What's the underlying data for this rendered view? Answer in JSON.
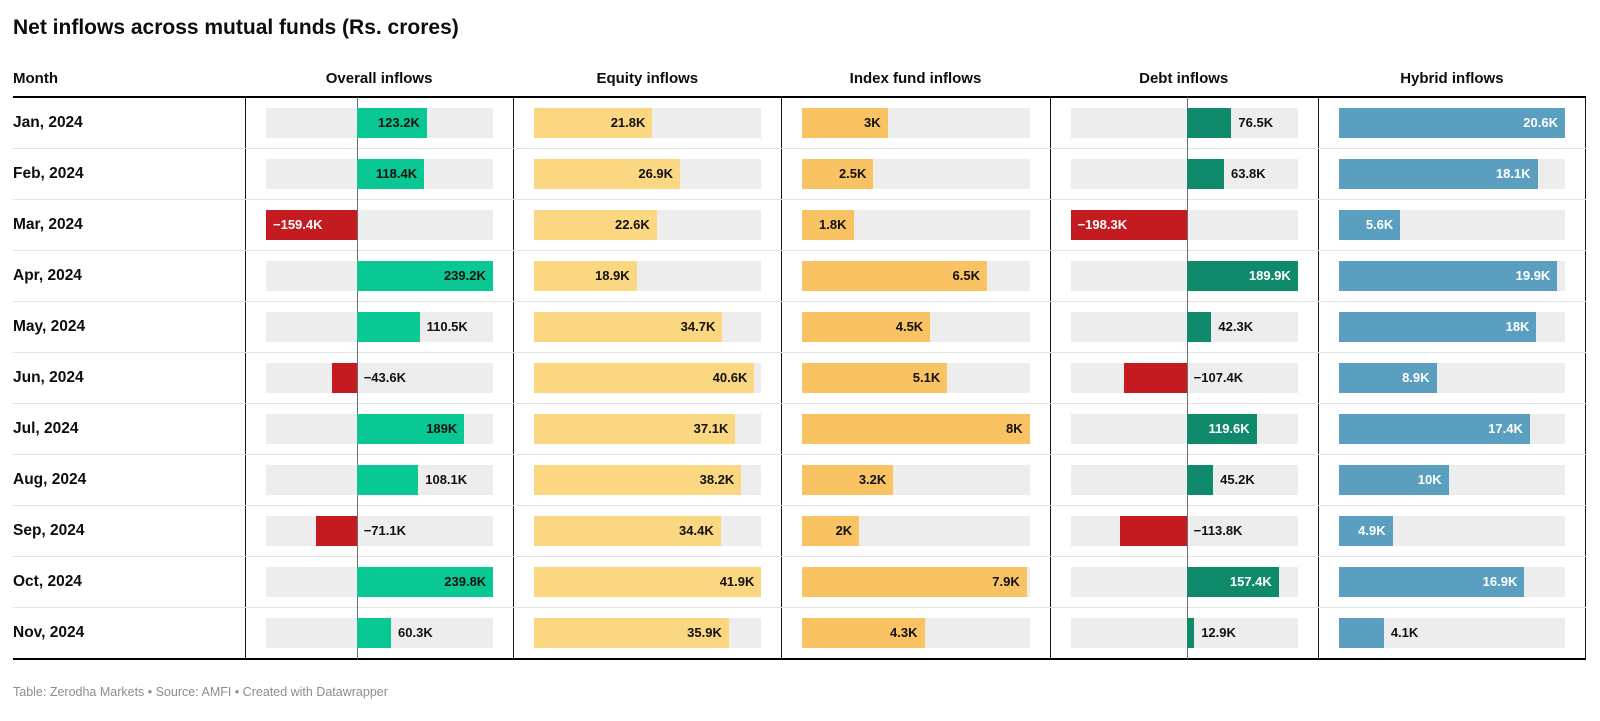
{
  "title": "Net inflows across mutual funds (Rs. crores)",
  "footer": {
    "text": "Table: Zerodha Markets • Source: AMFI • Created with Datawrapper"
  },
  "colors": {
    "positive_bright_green": "#09c893",
    "negative_red": "#c41b21",
    "equity_yellow": "#fbd781",
    "index_orange": "#f9c263",
    "debt_dark_green": "#0f8a6a",
    "hybrid_blue": "#5b9fc0",
    "track_gray": "#ededed",
    "border_black": "#000000",
    "row_separator": "#e4e4e4",
    "footer_gray": "#8d8d8d"
  },
  "chart_data": {
    "type": "table",
    "title": "Net inflows across mutual funds (Rs. crores)",
    "unit": "K (Rs. crores)",
    "columns": [
      "Month",
      "Overall inflows",
      "Equity inflows",
      "Index fund inflows",
      "Debt inflows",
      "Hybrid inflows"
    ],
    "months": [
      "Jan, 2024",
      "Feb, 2024",
      "Mar, 2024",
      "Apr, 2024",
      "May, 2024",
      "Jun, 2024",
      "Jul, 2024",
      "Aug, 2024",
      "Sep, 2024",
      "Oct, 2024",
      "Nov, 2024"
    ],
    "series": [
      {
        "name": "Overall inflows",
        "cell_name": "overall-inflows-cell",
        "diverging": true,
        "min": -159.4,
        "max": 239.8,
        "values": [
          123.2,
          118.4,
          -159.4,
          239.2,
          110.5,
          -43.6,
          189,
          108.1,
          -71.1,
          239.8,
          60.3
        ],
        "labels": [
          "123.2K",
          "118.4K",
          "−159.4K",
          "239.2K",
          "110.5K",
          "−43.6K",
          "189K",
          "108.1K",
          "−71.1K",
          "239.8K",
          "60.3K"
        ],
        "label_pos": [
          "in",
          "in",
          "in",
          "in",
          "out",
          "out",
          "in",
          "out",
          "out",
          "in",
          "out"
        ],
        "pos_color": "#09c893",
        "neg_color": "#c41b21",
        "label_in_pos_color": "#111111",
        "label_in_neg_color": "#ffffff"
      },
      {
        "name": "Equity inflows",
        "cell_name": "equity-inflows-cell",
        "diverging": false,
        "min": 0,
        "max": 41.9,
        "values": [
          21.8,
          26.9,
          22.6,
          18.9,
          34.7,
          40.6,
          37.1,
          38.2,
          34.4,
          41.9,
          35.9
        ],
        "labels": [
          "21.8K",
          "26.9K",
          "22.6K",
          "18.9K",
          "34.7K",
          "40.6K",
          "37.1K",
          "38.2K",
          "34.4K",
          "41.9K",
          "35.9K"
        ],
        "label_pos": [
          "in",
          "in",
          "in",
          "in",
          "in",
          "in",
          "in",
          "in",
          "in",
          "in",
          "in"
        ],
        "pos_color": "#fbd781",
        "neg_color": "#c41b21",
        "label_in_pos_color": "#111111",
        "label_in_neg_color": "#ffffff"
      },
      {
        "name": "Index fund inflows",
        "cell_name": "index-fund-inflows-cell",
        "diverging": false,
        "min": 0,
        "max": 8,
        "values": [
          3,
          2.5,
          1.8,
          6.5,
          4.5,
          5.1,
          8,
          3.2,
          2,
          7.9,
          4.3
        ],
        "labels": [
          "3K",
          "2.5K",
          "1.8K",
          "6.5K",
          "4.5K",
          "5.1K",
          "8K",
          "3.2K",
          "2K",
          "7.9K",
          "4.3K"
        ],
        "label_pos": [
          "in",
          "in",
          "in",
          "in",
          "in",
          "in",
          "in",
          "in",
          "in",
          "in",
          "in"
        ],
        "pos_color": "#f9c263",
        "neg_color": "#c41b21",
        "label_in_pos_color": "#111111",
        "label_in_neg_color": "#ffffff"
      },
      {
        "name": "Debt inflows",
        "cell_name": "debt-inflows-cell",
        "diverging": true,
        "min": -198.3,
        "max": 189.9,
        "values": [
          76.5,
          63.8,
          -198.3,
          189.9,
          42.3,
          -107.4,
          119.6,
          45.2,
          -113.8,
          157.4,
          12.9
        ],
        "labels": [
          "76.5K",
          "63.8K",
          "−198.3K",
          "189.9K",
          "42.3K",
          "−107.4K",
          "119.6K",
          "45.2K",
          "−113.8K",
          "157.4K",
          "12.9K"
        ],
        "label_pos": [
          "out",
          "out",
          "in",
          "in",
          "out",
          "out",
          "in",
          "out",
          "out",
          "in",
          "out"
        ],
        "pos_color": "#0f8a6a",
        "neg_color": "#c41b21",
        "label_in_pos_color": "#ffffff",
        "label_in_neg_color": "#ffffff"
      },
      {
        "name": "Hybrid inflows",
        "cell_name": "hybrid-inflows-cell",
        "diverging": false,
        "min": 0,
        "max": 20.6,
        "values": [
          20.6,
          18.1,
          5.6,
          19.9,
          18,
          8.9,
          17.4,
          10,
          4.9,
          16.9,
          4.1
        ],
        "labels": [
          "20.6K",
          "18.1K",
          "5.6K",
          "19.9K",
          "18K",
          "8.9K",
          "17.4K",
          "10K",
          "4.9K",
          "16.9K",
          "4.1K"
        ],
        "label_pos": [
          "in",
          "in",
          "in",
          "in",
          "in",
          "in",
          "in",
          "in",
          "in",
          "in",
          "out"
        ],
        "pos_color": "#5b9fc0",
        "neg_color": "#c41b21",
        "label_in_pos_color": "#ffffff",
        "label_in_neg_color": "#ffffff"
      }
    ]
  }
}
